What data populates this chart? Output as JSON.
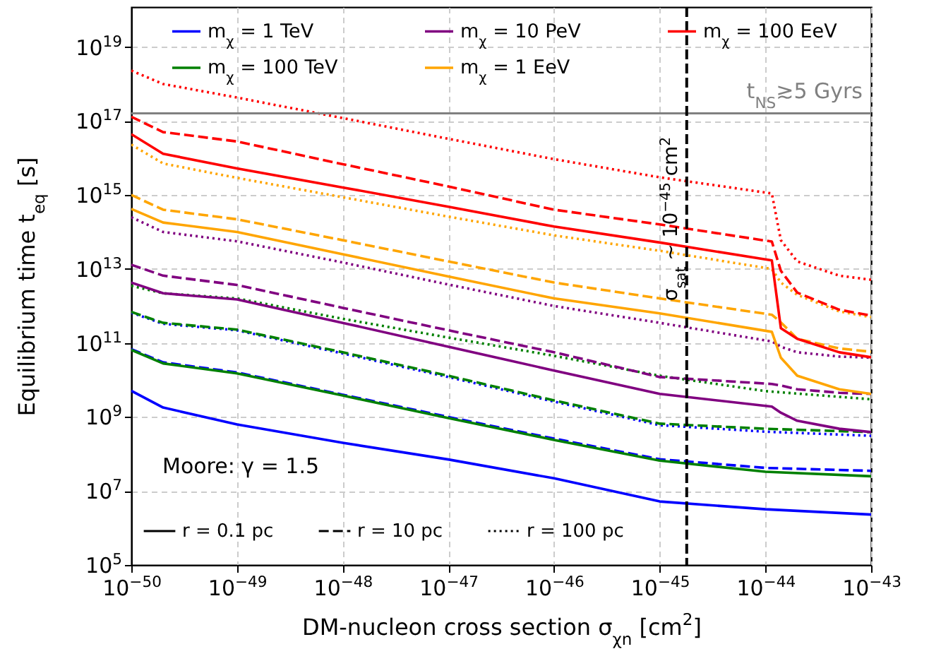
{
  "chart_data": {
    "type": "line",
    "xlabel": "DM-nucleon cross section σ$_{χn}$ [cm$^{2}$]",
    "ylabel": "Equilibrium time t$_{eq}$ [s]",
    "log": "xy",
    "grid": true,
    "legend": "top",
    "xlim": [
      1e-50,
      1e-43
    ],
    "ylim": [
      100000.0,
      1.2e+20
    ],
    "xticks": [
      {
        "value": 1e-50,
        "label": "10$^{−50}$"
      },
      {
        "value": 1e-49,
        "label": "10$^{−49}$"
      },
      {
        "value": 1e-48,
        "label": "10$^{−48}$"
      },
      {
        "value": 1e-47,
        "label": "10$^{−47}$"
      },
      {
        "value": 1e-46,
        "label": "10$^{−46}$"
      },
      {
        "value": 1e-45,
        "label": "10$^{−45}$"
      },
      {
        "value": 1e-44,
        "label": "10$^{−44}$"
      },
      {
        "value": 1e-43,
        "label": "10$^{−43}$"
      }
    ],
    "yticks": [
      {
        "value": 100000.0,
        "label": "10$^{5}$"
      },
      {
        "value": 10000000.0,
        "label": "10$^{7}$"
      },
      {
        "value": 1000000000.0,
        "label": "10$^{9}$"
      },
      {
        "value": 100000000000.0,
        "label": "10$^{11}$"
      },
      {
        "value": 10000000000000.0,
        "label": "10$^{13}$"
      },
      {
        "value": 1000000000000000.0,
        "label": "10$^{15}$"
      },
      {
        "value": 1e+17,
        "label": "10$^{17}$"
      },
      {
        "value": 1e+19,
        "label": "10$^{19}$"
      }
    ],
    "x": [
      1e-50,
      2e-50,
      1e-49,
      1e-48,
      1e-47,
      1e-46,
      1e-45,
      1e-44,
      1e-43
    ],
    "series": [
      {
        "name": "m$_{χ}$ = 1 TeV",
        "color": "#0000ff",
        "line_style": "solid",
        "values": [
          5100000000.0,
          1800000000.0,
          630000000.0,
          200000000.0,
          71000000.0,
          22000000.0,
          5200000.0,
          3200000.0,
          2300000.0
        ]
      },
      {
        "color": "#0000ff",
        "line_style": "dashed",
        "values": [
          68000000000.0,
          30000000000.0,
          16000000000.0,
          4000000000.0,
          1000000000.0,
          260000000.0,
          72000000.0,
          42000000.0,
          35000000.0
        ]
      },
      {
        "color": "#0000ff",
        "line_style": "dotted",
        "values": [
          660000000000.0,
          330000000000.0,
          220000000000.0,
          52000000000.0,
          12000000000.0,
          2600000000.0,
          600000000.0,
          400000000.0,
          310000000.0
        ]
      },
      {
        "name": "m$_{χ}$ = 100 TeV",
        "color": "#008000",
        "line_style": "solid",
        "values": [
          65000000000.0,
          28000000000.0,
          15000000000.0,
          3800000000.0,
          930000000.0,
          240000000.0,
          66000000.0,
          33000000.0,
          25000000.0
        ]
      },
      {
        "color": "#008000",
        "line_style": "dashed",
        "values": [
          690000000000.0,
          350000000000.0,
          230000000000.0,
          56000000000.0,
          13000000000.0,
          2800000000.0,
          660000000.0,
          480000000.0,
          390000000.0
        ]
      },
      {
        "color": "#008000",
        "line_style": "dotted",
        "values": [
          3500000000000.0,
          2200000000000.0,
          1600000000000.0,
          450000000000.0,
          140000000000.0,
          45000000000.0,
          13000000000.0,
          5000000000.0,
          3000000000.0
        ]
      },
      {
        "name": "m$_{χ}$ = 10 PeV",
        "color": "#800080",
        "line_style": "solid",
        "x": [
          1e-50,
          2e-50,
          1e-49,
          1e-48,
          1e-47,
          1e-46,
          1e-45,
          1.15e-44,
          1.4e-44,
          2e-44,
          5e-44,
          1e-43
        ],
        "values": [
          4300000000000.0,
          2200000000000.0,
          1500000000000.0,
          350000000000.0,
          79000000000.0,
          18000000000.0,
          4200000000.0,
          1900000000.0,
          1300000000.0,
          790000000.0,
          480000000.0,
          390000000.0
        ]
      },
      {
        "color": "#800080",
        "line_style": "dashed",
        "x": [
          1e-50,
          2e-50,
          1e-49,
          1e-48,
          1e-47,
          1e-46,
          1e-45,
          1.15e-44,
          1.4e-44,
          2e-44,
          5e-44,
          1e-43
        ],
        "values": [
          13000000000000.0,
          6600000000000.0,
          3700000000000.0,
          890000000000.0,
          220000000000.0,
          56000000000.0,
          12000000000.0,
          7800000000.0,
          7100000000.0,
          5600000000.0,
          4500000000.0,
          4200000000.0
        ]
      },
      {
        "color": "#800080",
        "line_style": "dotted",
        "x": [
          1e-50,
          2e-50,
          1e-49,
          1e-48,
          1e-47,
          1e-46,
          1e-45,
          1.15e-44,
          1.4e-44,
          2e-44,
          5e-44,
          1e-43
        ],
        "values": [
          250000000000000.0,
          100000000000000.0,
          56000000000000.0,
          15000000000000.0,
          3800000000000.0,
          1000000000000.0,
          350000000000.0,
          110000000000.0,
          79000000000.0,
          56000000000.0,
          43000000000.0,
          40000000000.0
        ]
      },
      {
        "name": "m$_{χ}$ = 1 EeV",
        "color": "#ffa500",
        "line_style": "solid",
        "x": [
          1e-50,
          2e-50,
          1e-49,
          1e-48,
          1e-47,
          1e-46,
          1e-45,
          1.15e-44,
          1.4e-44,
          2e-44,
          5e-44,
          1e-43
        ],
        "values": [
          420000000000000.0,
          180000000000000.0,
          100000000000000.0,
          25000000000000.0,
          6300000000000.0,
          1600000000000.0,
          630000000000.0,
          200000000000.0,
          40000000000.0,
          13000000000.0,
          5600000000.0,
          4200000000.0
        ]
      },
      {
        "color": "#ffa500",
        "line_style": "dashed",
        "x": [
          1e-50,
          2e-50,
          1e-49,
          1e-48,
          1e-47,
          1e-46,
          1e-45,
          1.15e-44,
          1.4e-44,
          2e-44,
          5e-44,
          1e-43
        ],
        "values": [
          1000000000000000.0,
          400000000000000.0,
          220000000000000.0,
          60000000000000.0,
          16000000000000.0,
          4300000000000.0,
          1600000000000.0,
          580000000000.0,
          360000000000.0,
          130000000000.0,
          71000000000.0,
          58000000000.0
        ]
      },
      {
        "color": "#ffa500",
        "line_style": "dotted",
        "x": [
          1e-50,
          2e-50,
          1e-49,
          1e-48,
          1e-47,
          1e-46,
          1e-45,
          1.15e-44,
          1.4e-44,
          2e-44,
          5e-44,
          1e-43
        ],
        "values": [
          2.3e+16,
          7100000000000000.0,
          2900000000000000.0,
          870000000000000.0,
          260000000000000.0,
          81000000000000.0,
          31000000000000.0,
          10000000000000.0,
          4300000000000.0,
          2000000000000.0,
          710000000000.0,
          500000000000.0
        ]
      },
      {
        "name": "m$_{χ}$ = 100 EeV",
        "color": "#ff0000",
        "line_style": "solid",
        "x": [
          1e-50,
          2e-50,
          1e-49,
          1e-48,
          1e-47,
          1e-46,
          1e-45,
          1.15e-44,
          1.4e-44,
          2e-44,
          5e-44,
          1e-43
        ],
        "values": [
          4.4e+16,
          1.3e+16,
          5200000000000000.0,
          1600000000000000.0,
          480000000000000.0,
          140000000000000.0,
          52000000000000.0,
          17000000000000.0,
          250000000000.0,
          130000000000.0,
          56000000000.0,
          41000000000.0
        ]
      },
      {
        "color": "#ff0000",
        "line_style": "dashed",
        "x": [
          1e-50,
          2e-50,
          1e-49,
          1e-48,
          1e-47,
          1e-46,
          1e-45,
          1.15e-44,
          1.4e-44,
          2e-44,
          5e-44,
          1e-43
        ],
        "values": [
          1.3e+17,
          5e+16,
          2.8e+16,
          6800000000000000.0,
          1700000000000000.0,
          400000000000000.0,
          160000000000000.0,
          55000000000000.0,
          8900000000000.0,
          2300000000000.0,
          790000000000.0,
          550000000000.0
        ]
      },
      {
        "color": "#ff0000",
        "line_style": "dotted",
        "x": [
          1e-50,
          2e-50,
          1e-49,
          1e-48,
          1e-47,
          1e-46,
          1e-45,
          1.15e-44,
          1.4e-44,
          2e-44,
          5e-44,
          1e-43
        ],
        "values": [
          2.3e+18,
          1e+18,
          4.3e+17,
          1.2e+17,
          3.3e+16,
          9300000000000000.0,
          3000000000000000.0,
          1100000000000000.0,
          60000000000000.0,
          16000000000000.0,
          6600000000000.0,
          5100000000000.0
        ]
      }
    ],
    "ref_lines": [
      {
        "axis": "y",
        "value": 1.6e+17,
        "label": "t$_{NS}$≳5 Gyrs",
        "color": "#808080",
        "line_style": "solid"
      },
      {
        "axis": "x",
        "value": 1.8e-45,
        "label": "σ$_{sat}$ ~ 10$^{−45}$ cm$^{2}$",
        "color": "#000000",
        "line_style": "dashed"
      }
    ],
    "annotations": [
      "r = 0.1 pc",
      "r = 10 pc",
      "r = 100 pc",
      "Moore: γ = 1.5"
    ]
  }
}
